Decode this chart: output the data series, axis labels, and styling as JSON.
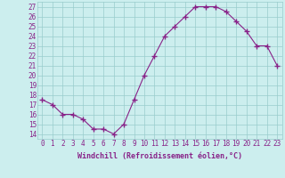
{
  "x": [
    0,
    1,
    2,
    3,
    4,
    5,
    6,
    7,
    8,
    9,
    10,
    11,
    12,
    13,
    14,
    15,
    16,
    17,
    18,
    19,
    20,
    21,
    22,
    23
  ],
  "y": [
    17.5,
    17.0,
    16.0,
    16.0,
    15.5,
    14.5,
    14.5,
    14.0,
    15.0,
    17.5,
    20.0,
    22.0,
    24.0,
    25.0,
    26.0,
    27.0,
    27.0,
    27.0,
    26.5,
    25.5,
    24.5,
    23.0,
    23.0,
    21.0
  ],
  "xlabel": "Windchill (Refroidissement éolien,°C)",
  "xlim": [
    -0.5,
    23.5
  ],
  "ylim": [
    13.5,
    27.5
  ],
  "yticks": [
    14,
    15,
    16,
    17,
    18,
    19,
    20,
    21,
    22,
    23,
    24,
    25,
    26,
    27
  ],
  "xticks": [
    0,
    1,
    2,
    3,
    4,
    5,
    6,
    7,
    8,
    9,
    10,
    11,
    12,
    13,
    14,
    15,
    16,
    17,
    18,
    19,
    20,
    21,
    22,
    23
  ],
  "line_color": "#882288",
  "marker_color": "#882288",
  "bg_color": "#cceeee",
  "grid_color": "#99cccc",
  "xlabel_fontsize": 6.0,
  "tick_fontsize": 5.5
}
